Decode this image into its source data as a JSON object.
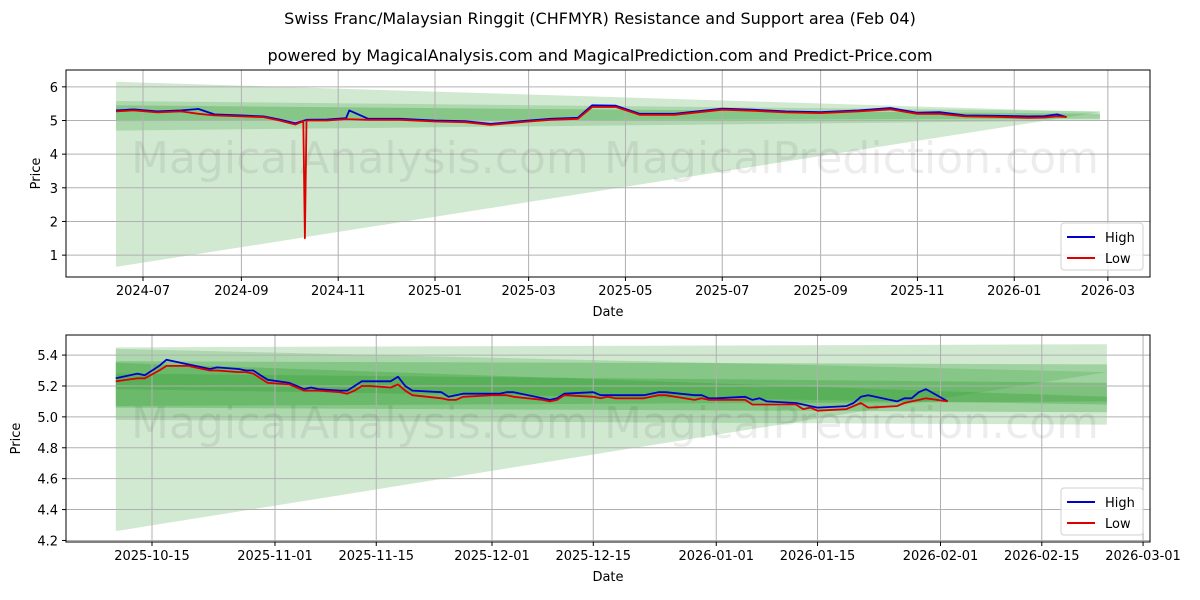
{
  "header": {
    "title": "Swiss Franc/Malaysian Ringgit (CHFMYR) Resistance and Support area (Feb 04)",
    "subtitle": "powered by MagicalAnalysis.com and MagicalPrediction.com and Predict-Price.com"
  },
  "watermarks": [
    "MagicalAnalysis.com",
    "MagicalPrediction.com"
  ],
  "colors": {
    "high": "#0000cc",
    "low": "#dd0000",
    "band": "#2e9a2e",
    "grid": "#b0b0b0"
  },
  "chart_data": [
    {
      "type": "line",
      "title": "Full history",
      "xlabel": "Date",
      "ylabel": "Price",
      "ylim": [
        0.35,
        6.5
      ],
      "grid": true,
      "legend_position": "lower right",
      "legend": [
        "High",
        "Low"
      ],
      "x_ticks": [
        "2024-07",
        "2024-09",
        "2024-11",
        "2025-01",
        "2025-03",
        "2025-05",
        "2025-07",
        "2025-09",
        "2025-11",
        "2026-01",
        "2026-03"
      ],
      "y_ticks": [
        "1",
        "2",
        "3",
        "4",
        "5",
        "6"
      ],
      "series": [
        {
          "name": "High",
          "x": [
            "2024-06-14",
            "2024-06-25",
            "2024-07-10",
            "2024-07-25",
            "2024-08-05",
            "2024-08-15",
            "2024-09-01",
            "2024-09-15",
            "2024-09-25",
            "2024-10-05",
            "2024-10-12",
            "2024-10-25",
            "2024-11-06",
            "2024-11-08",
            "2024-11-20",
            "2024-12-10",
            "2025-01-01",
            "2025-01-20",
            "2025-02-05",
            "2025-03-01",
            "2025-03-15",
            "2025-04-01",
            "2025-04-10",
            "2025-04-25",
            "2025-05-10",
            "2025-06-01",
            "2025-07-01",
            "2025-07-20",
            "2025-08-10",
            "2025-09-01",
            "2025-09-25",
            "2025-10-15",
            "2025-11-01",
            "2025-11-15",
            "2025-12-01",
            "2025-12-20",
            "2026-01-10",
            "2026-01-20",
            "2026-01-28",
            "2026-02-03"
          ],
          "values": [
            5.3,
            5.33,
            5.27,
            5.3,
            5.34,
            5.18,
            5.15,
            5.12,
            5.03,
            4.92,
            5.02,
            5.03,
            5.07,
            5.3,
            5.05,
            5.05,
            5.0,
            4.98,
            4.9,
            5.0,
            5.05,
            5.08,
            5.45,
            5.44,
            5.2,
            5.2,
            5.35,
            5.32,
            5.27,
            5.25,
            5.3,
            5.37,
            5.23,
            5.25,
            5.15,
            5.14,
            5.12,
            5.13,
            5.18,
            5.1
          ]
        },
        {
          "name": "Low",
          "x": [
            "2024-06-14",
            "2024-06-25",
            "2024-07-10",
            "2024-07-25",
            "2024-08-05",
            "2024-08-15",
            "2024-09-01",
            "2024-09-15",
            "2024-09-25",
            "2024-10-05",
            "2024-10-10",
            "2024-10-11",
            "2024-10-12",
            "2024-10-25",
            "2024-11-06",
            "2024-11-20",
            "2024-12-10",
            "2025-01-01",
            "2025-01-20",
            "2025-02-05",
            "2025-03-01",
            "2025-03-15",
            "2025-04-01",
            "2025-04-10",
            "2025-04-25",
            "2025-05-10",
            "2025-06-01",
            "2025-07-01",
            "2025-07-20",
            "2025-08-10",
            "2025-09-01",
            "2025-09-25",
            "2025-10-15",
            "2025-11-01",
            "2025-11-15",
            "2025-12-01",
            "2025-12-20",
            "2026-01-10",
            "2026-01-20",
            "2026-01-28",
            "2026-02-03"
          ],
          "values": [
            5.27,
            5.3,
            5.24,
            5.27,
            5.2,
            5.15,
            5.12,
            5.1,
            5.0,
            4.88,
            4.98,
            1.5,
            5.0,
            5.0,
            5.04,
            5.02,
            5.02,
            4.97,
            4.95,
            4.87,
            4.97,
            5.02,
            5.05,
            5.4,
            5.4,
            5.17,
            5.17,
            5.32,
            5.29,
            5.24,
            5.22,
            5.27,
            5.33,
            5.2,
            5.2,
            5.12,
            5.11,
            5.08,
            5.09,
            5.12,
            5.1
          ]
        }
      ],
      "bands": [
        {
          "name": "outer-triangle",
          "x": [
            "2024-06-14",
            "2026-02-24"
          ],
          "upper": [
            6.15,
            5.25
          ],
          "lower": [
            0.65,
            5.25
          ]
        },
        {
          "name": "light-band",
          "x": [
            "2024-06-14",
            "2026-02-24"
          ],
          "upper": [
            5.58,
            5.28
          ],
          "lower": [
            4.7,
            5.0
          ]
        },
        {
          "name": "mid-band",
          "x": [
            "2024-06-14",
            "2026-02-24"
          ],
          "upper": [
            5.45,
            5.2
          ],
          "lower": [
            4.98,
            5.05
          ]
        }
      ]
    },
    {
      "type": "line",
      "title": "Recent zoom",
      "xlabel": "Date",
      "ylabel": "Price",
      "ylim": [
        4.19,
        5.53
      ],
      "grid": true,
      "legend_position": "lower right",
      "legend": [
        "High",
        "Low"
      ],
      "x_ticks": [
        "2025-10-15",
        "2025-11-01",
        "2025-11-15",
        "2025-12-01",
        "2025-12-15",
        "2026-01-01",
        "2026-01-15",
        "2026-02-01",
        "2026-02-15",
        "2026-03-01"
      ],
      "y_ticks": [
        "4.2",
        "4.4",
        "4.6",
        "4.8",
        "5.0",
        "5.2",
        "5.4"
      ],
      "series": [
        {
          "name": "High",
          "x": [
            "2025-10-10",
            "2025-10-13",
            "2025-10-14",
            "2025-10-16",
            "2025-10-17",
            "2025-10-20",
            "2025-10-22",
            "2025-10-23",
            "2025-10-24",
            "2025-10-27",
            "2025-10-28",
            "2025-10-29",
            "2025-10-30",
            "2025-10-31",
            "2025-11-03",
            "2025-11-04",
            "2025-11-05",
            "2025-11-06",
            "2025-11-07",
            "2025-11-10",
            "2025-11-11",
            "2025-11-12",
            "2025-11-13",
            "2025-11-14",
            "2025-11-17",
            "2025-11-18",
            "2025-11-19",
            "2025-11-20",
            "2025-11-24",
            "2025-11-25",
            "2025-11-26",
            "2025-11-27",
            "2025-12-01",
            "2025-12-02",
            "2025-12-03",
            "2025-12-04",
            "2025-12-08",
            "2025-12-09",
            "2025-12-10",
            "2025-12-11",
            "2025-12-15",
            "2025-12-16",
            "2025-12-17",
            "2025-12-18",
            "2025-12-22",
            "2025-12-23",
            "2025-12-24",
            "2025-12-25",
            "2025-12-29",
            "2025-12-30",
            "2025-12-31",
            "2026-01-01",
            "2026-01-05",
            "2026-01-06",
            "2026-01-07",
            "2026-01-08",
            "2026-01-12",
            "2026-01-13",
            "2026-01-14",
            "2026-01-15",
            "2026-01-19",
            "2026-01-20",
            "2026-01-21",
            "2026-01-22",
            "2026-01-26",
            "2026-01-27",
            "2026-01-28",
            "2026-01-29",
            "2026-01-30",
            "2026-02-02"
          ],
          "values": [
            5.25,
            5.28,
            5.27,
            5.33,
            5.37,
            5.34,
            5.32,
            5.31,
            5.32,
            5.31,
            5.3,
            5.3,
            5.27,
            5.24,
            5.22,
            5.2,
            5.18,
            5.19,
            5.18,
            5.17,
            5.17,
            5.2,
            5.23,
            5.23,
            5.23,
            5.26,
            5.2,
            5.17,
            5.16,
            5.13,
            5.14,
            5.15,
            5.15,
            5.15,
            5.16,
            5.16,
            5.12,
            5.11,
            5.12,
            5.15,
            5.16,
            5.14,
            5.14,
            5.14,
            5.14,
            5.15,
            5.16,
            5.16,
            5.14,
            5.14,
            5.12,
            5.12,
            5.13,
            5.11,
            5.12,
            5.1,
            5.09,
            5.08,
            5.07,
            5.06,
            5.07,
            5.09,
            5.13,
            5.14,
            5.1,
            5.12,
            5.12,
            5.16,
            5.18,
            5.1
          ]
        },
        {
          "name": "Low",
          "x": [
            "2025-10-10",
            "2025-10-13",
            "2025-10-14",
            "2025-10-16",
            "2025-10-17",
            "2025-10-20",
            "2025-10-22",
            "2025-10-23",
            "2025-10-24",
            "2025-10-27",
            "2025-10-28",
            "2025-10-29",
            "2025-10-30",
            "2025-10-31",
            "2025-11-03",
            "2025-11-04",
            "2025-11-05",
            "2025-11-06",
            "2025-11-07",
            "2025-11-10",
            "2025-11-11",
            "2025-11-12",
            "2025-11-13",
            "2025-11-14",
            "2025-11-17",
            "2025-11-18",
            "2025-11-19",
            "2025-11-20",
            "2025-11-24",
            "2025-11-25",
            "2025-11-26",
            "2025-11-27",
            "2025-12-01",
            "2025-12-02",
            "2025-12-03",
            "2025-12-04",
            "2025-12-08",
            "2025-12-09",
            "2025-12-10",
            "2025-12-11",
            "2025-12-15",
            "2025-12-16",
            "2025-12-17",
            "2025-12-18",
            "2025-12-22",
            "2025-12-23",
            "2025-12-24",
            "2025-12-25",
            "2025-12-29",
            "2025-12-30",
            "2025-12-31",
            "2026-01-01",
            "2026-01-05",
            "2026-01-06",
            "2026-01-07",
            "2026-01-08",
            "2026-01-12",
            "2026-01-13",
            "2026-01-14",
            "2026-01-15",
            "2026-01-19",
            "2026-01-20",
            "2026-01-21",
            "2026-01-22",
            "2026-01-26",
            "2026-01-27",
            "2026-01-28",
            "2026-01-29",
            "2026-01-30",
            "2026-02-02"
          ],
          "values": [
            5.23,
            5.25,
            5.25,
            5.3,
            5.33,
            5.33,
            5.31,
            5.3,
            5.3,
            5.29,
            5.29,
            5.28,
            5.25,
            5.22,
            5.21,
            5.19,
            5.17,
            5.17,
            5.17,
            5.16,
            5.15,
            5.17,
            5.2,
            5.2,
            5.19,
            5.21,
            5.17,
            5.14,
            5.12,
            5.11,
            5.11,
            5.13,
            5.14,
            5.14,
            5.14,
            5.13,
            5.11,
            5.1,
            5.11,
            5.14,
            5.13,
            5.12,
            5.13,
            5.12,
            5.12,
            5.13,
            5.14,
            5.14,
            5.11,
            5.12,
            5.11,
            5.11,
            5.11,
            5.08,
            5.08,
            5.08,
            5.08,
            5.05,
            5.06,
            5.04,
            5.05,
            5.07,
            5.09,
            5.06,
            5.07,
            5.09,
            5.1,
            5.11,
            5.12,
            5.1
          ]
        }
      ],
      "bands": [
        {
          "name": "outer-triangle",
          "x": [
            "2025-10-10",
            "2026-02-24"
          ],
          "upper": [
            5.44,
            5.29
          ],
          "lower": [
            4.26,
            5.29
          ]
        },
        {
          "name": "outer-light",
          "x": [
            "2025-10-10",
            "2026-02-24"
          ],
          "upper": [
            5.45,
            5.47
          ],
          "lower": [
            4.98,
            4.95
          ]
        },
        {
          "name": "mid-light",
          "x": [
            "2025-10-10",
            "2026-02-24"
          ],
          "upper": [
            5.36,
            5.34
          ],
          "lower": [
            5.06,
            5.03
          ]
        },
        {
          "name": "inner",
          "x": [
            "2025-10-10",
            "2026-02-24"
          ],
          "upper": [
            5.35,
            5.13
          ],
          "lower": [
            5.18,
            5.08
          ]
        },
        {
          "name": "inner2",
          "x": [
            "2025-10-10",
            "2026-02-24"
          ],
          "upper": [
            5.28,
            5.22
          ],
          "lower": [
            5.07,
            5.1
          ]
        }
      ]
    }
  ]
}
